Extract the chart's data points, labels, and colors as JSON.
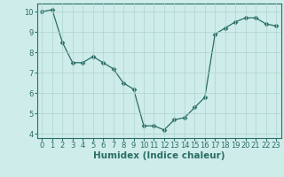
{
  "x": [
    0,
    1,
    2,
    3,
    4,
    5,
    6,
    7,
    8,
    9,
    10,
    11,
    12,
    13,
    14,
    15,
    16,
    17,
    18,
    19,
    20,
    21,
    22,
    23
  ],
  "y": [
    10.0,
    10.1,
    8.5,
    7.5,
    7.5,
    7.8,
    7.5,
    7.2,
    6.5,
    6.2,
    4.4,
    4.4,
    4.2,
    4.7,
    4.8,
    5.3,
    5.8,
    8.9,
    9.2,
    9.5,
    9.7,
    9.7,
    9.4,
    9.3
  ],
  "title": "",
  "xlabel": "Humidex (Indice chaleur)",
  "ylabel": "",
  "xlim": [
    -0.5,
    23.5
  ],
  "ylim": [
    3.8,
    10.4
  ],
  "yticks": [
    4,
    5,
    6,
    7,
    8,
    9,
    10
  ],
  "xticks": [
    0,
    1,
    2,
    3,
    4,
    5,
    6,
    7,
    8,
    9,
    10,
    11,
    12,
    13,
    14,
    15,
    16,
    17,
    18,
    19,
    20,
    21,
    22,
    23
  ],
  "line_color": "#2a6e65",
  "marker": "D",
  "marker_size": 2.5,
  "bg_color": "#ceecea",
  "grid_color": "#aed4d0",
  "axis_label_fontsize": 7.5,
  "tick_fontsize": 6.0
}
